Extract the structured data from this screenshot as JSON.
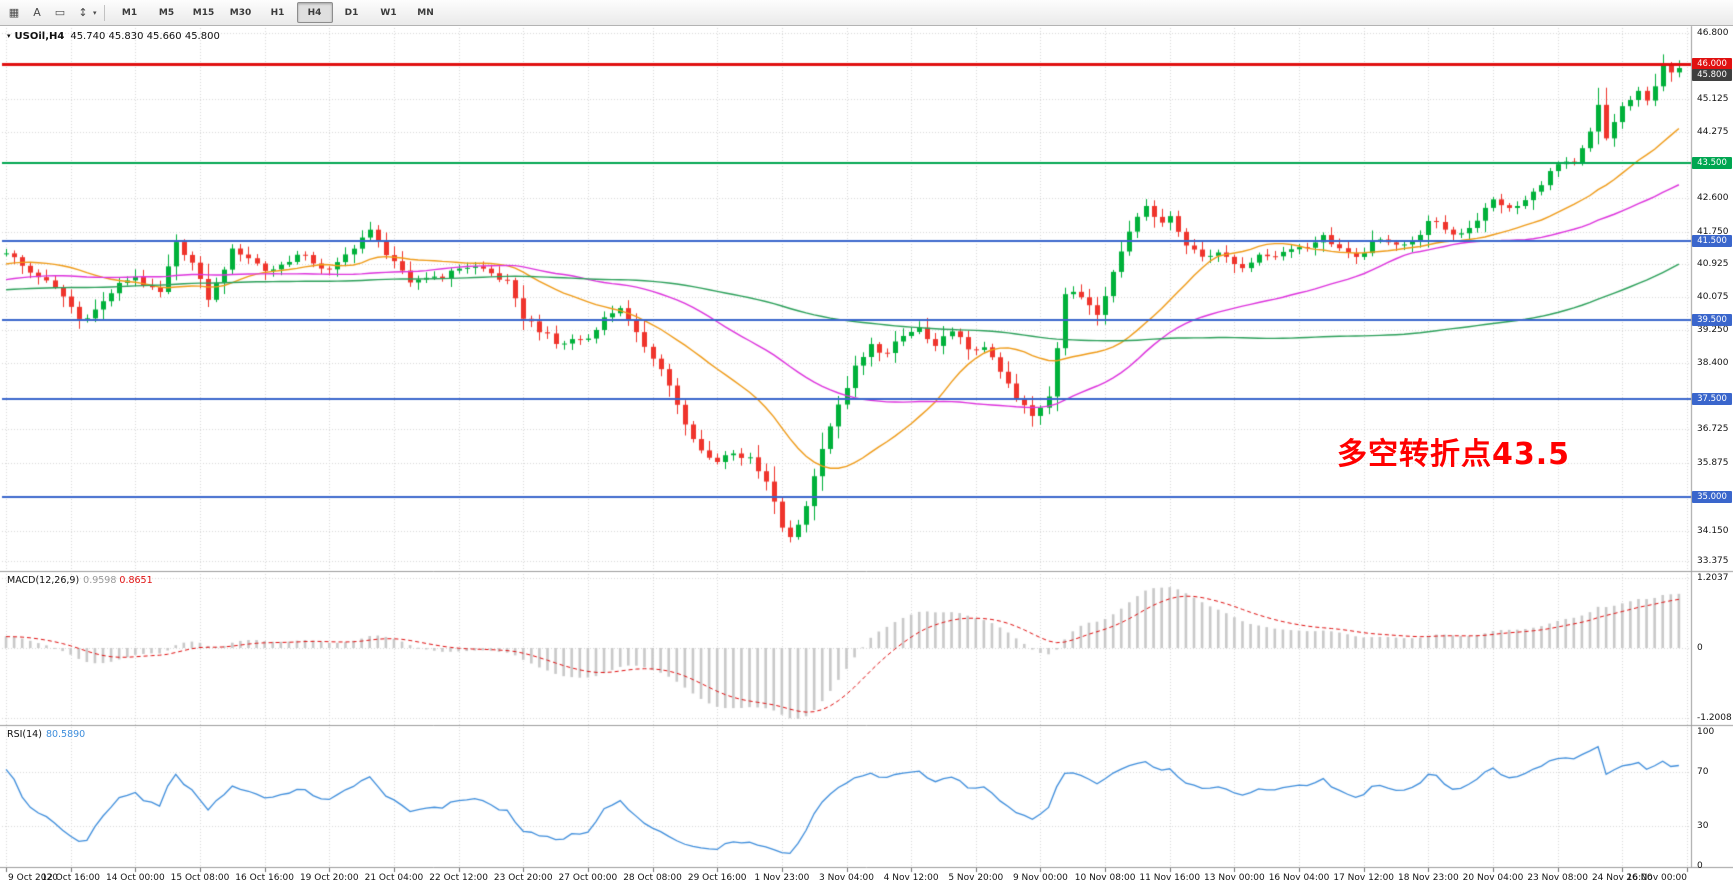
{
  "toolbar": {
    "tools": [
      {
        "name": "chart-window-menu",
        "glyph": "▦"
      },
      {
        "name": "text-label-tool",
        "glyph": "A"
      },
      {
        "name": "shapes-tool",
        "glyph": "▭"
      },
      {
        "name": "cycle-lines-tool",
        "glyph": "↕",
        "caret": true
      }
    ],
    "dropdown_caret": "▾",
    "timeframes": [
      "M1",
      "M5",
      "M15",
      "M30",
      "H1",
      "H4",
      "D1",
      "W1",
      "MN"
    ],
    "active_timeframe": "H4"
  },
  "chart_data": {
    "type": "candlestick",
    "symbol_label": "USOil,H4",
    "collapse_glyph": "▾",
    "ohlc_label": "45.740 45.830 45.660 45.800",
    "annotation": {
      "text": "多空转折点43.5",
      "color": "#ff0000"
    },
    "price_axis": {
      "min": 33.375,
      "max": 46.8,
      "plain_labels": [
        "46.800",
        "45.125",
        "44.275",
        "42.600",
        "41.750",
        "40.925",
        "40.075",
        "39.250",
        "38.400",
        "36.725",
        "35.875",
        "34.150",
        "33.375"
      ],
      "badges": [
        {
          "label": "46.000",
          "color": "#e01010",
          "name": "resistance-46-badge"
        },
        {
          "label": "45.800",
          "color": "#3f3f3f",
          "name": "current-price-badge"
        },
        {
          "label": "43.500",
          "color": "#00a651",
          "name": "pivot-43-5-badge"
        },
        {
          "label": "41.500",
          "color": "#3a66cc",
          "name": "level-41-5-badge"
        },
        {
          "label": "39.500",
          "color": "#3a66cc",
          "name": "level-39-5-badge"
        },
        {
          "label": "37.500",
          "color": "#3a66cc",
          "name": "level-37-5-badge"
        },
        {
          "label": "35.000",
          "color": "#3a66cc",
          "name": "level-35-badge"
        }
      ]
    },
    "hlines": [
      {
        "price": 46.0,
        "color": "#e01010",
        "width": 3
      },
      {
        "price": 43.5,
        "color": "#00a651",
        "width": 2
      },
      {
        "price": 41.5,
        "color": "#3a66cc",
        "width": 2
      },
      {
        "price": 39.5,
        "color": "#3a66cc",
        "width": 2
      },
      {
        "price": 37.5,
        "color": "#3a66cc",
        "width": 2
      },
      {
        "price": 35.0,
        "color": "#3a66cc",
        "width": 2
      }
    ],
    "x_ticks": [
      "9 Oct 2020",
      "12 Oct 16:00",
      "14 Oct 00:00",
      "15 Oct 08:00",
      "16 Oct 16:00",
      "19 Oct 20:00",
      "21 Oct 04:00",
      "22 Oct 12:00",
      "23 Oct 20:00",
      "27 Oct 00:00",
      "28 Oct 08:00",
      "29 Oct 16:00",
      "1 Nov 23:00",
      "3 Nov 04:00",
      "4 Nov 12:00",
      "5 Nov 20:00",
      "9 Nov 00:00",
      "10 Nov 08:00",
      "11 Nov 16:00",
      "13 Nov 00:00",
      "16 Nov 04:00",
      "17 Nov 12:00",
      "18 Nov 23:00",
      "20 Nov 04:00",
      "23 Nov 08:00",
      "24 Nov 16:00",
      "26 Nov 00:00"
    ],
    "bars": 208,
    "bars_per_tick": 8,
    "prehistory_bars": 120,
    "noise": {
      "wave": 0.1,
      "jitter": 0.14
    },
    "prehistory_anchors": [
      [
        -120,
        40.3
      ],
      [
        -96,
        39.4
      ],
      [
        -72,
        40.9
      ],
      [
        -48,
        39.8
      ],
      [
        -24,
        40.4
      ],
      [
        -8,
        41.0
      ]
    ],
    "close_anchors": [
      [
        0,
        41.15
      ],
      [
        4,
        40.7
      ],
      [
        7,
        40.0
      ],
      [
        9,
        39.55
      ],
      [
        12,
        40.0
      ],
      [
        16,
        40.6
      ],
      [
        19,
        40.25
      ],
      [
        21,
        41.35
      ],
      [
        23,
        40.9
      ],
      [
        25,
        40.15
      ],
      [
        28,
        41.2
      ],
      [
        32,
        40.85
      ],
      [
        36,
        41.05
      ],
      [
        40,
        40.85
      ],
      [
        43,
        41.3
      ],
      [
        45,
        41.7
      ],
      [
        48,
        41.1
      ],
      [
        50,
        40.35
      ],
      [
        53,
        40.6
      ],
      [
        56,
        40.9
      ],
      [
        59,
        40.7
      ],
      [
        62,
        40.55
      ],
      [
        64,
        39.6
      ],
      [
        66,
        39.15
      ],
      [
        68,
        38.9
      ],
      [
        70,
        39.1
      ],
      [
        72,
        39.0
      ],
      [
        74,
        39.45
      ],
      [
        76,
        39.9
      ],
      [
        78,
        39.2
      ],
      [
        80,
        38.5
      ],
      [
        82,
        37.8
      ],
      [
        84,
        36.9
      ],
      [
        86,
        36.2
      ],
      [
        88,
        35.8
      ],
      [
        90,
        36.15
      ],
      [
        92,
        36.05
      ],
      [
        94,
        35.35
      ],
      [
        96,
        34.15
      ],
      [
        97,
        33.9
      ],
      [
        98,
        34.35
      ],
      [
        99,
        34.9
      ],
      [
        100,
        35.6
      ],
      [
        101,
        36.3
      ],
      [
        103,
        37.2
      ],
      [
        105,
        38.3
      ],
      [
        107,
        38.95
      ],
      [
        109,
        38.6
      ],
      [
        111,
        39.0
      ],
      [
        113,
        39.35
      ],
      [
        115,
        38.85
      ],
      [
        117,
        39.2
      ],
      [
        119,
        38.65
      ],
      [
        121,
        38.95
      ],
      [
        123,
        38.2
      ],
      [
        125,
        37.4
      ],
      [
        127,
        37.05
      ],
      [
        129,
        37.7
      ],
      [
        130,
        38.9
      ],
      [
        131,
        40.15
      ],
      [
        133,
        40.0
      ],
      [
        135,
        39.75
      ],
      [
        137,
        40.8
      ],
      [
        139,
        41.7
      ],
      [
        141,
        42.4
      ],
      [
        143,
        42.0
      ],
      [
        144,
        42.3
      ],
      [
        146,
        41.35
      ],
      [
        148,
        41.05
      ],
      [
        150,
        41.3
      ],
      [
        153,
        40.85
      ],
      [
        155,
        41.0
      ],
      [
        157,
        41.2
      ],
      [
        159,
        41.45
      ],
      [
        161,
        41.3
      ],
      [
        163,
        41.55
      ],
      [
        165,
        41.4
      ],
      [
        167,
        41.1
      ],
      [
        169,
        41.35
      ],
      [
        171,
        41.5
      ],
      [
        174,
        41.55
      ],
      [
        176,
        41.9
      ],
      [
        179,
        41.7
      ],
      [
        182,
        42.1
      ],
      [
        184,
        42.45
      ],
      [
        186,
        42.3
      ],
      [
        189,
        42.8
      ],
      [
        192,
        43.35
      ],
      [
        194,
        43.5
      ],
      [
        196,
        44.35
      ],
      [
        197,
        44.95
      ],
      [
        198,
        44.05
      ],
      [
        199,
        44.45
      ],
      [
        200,
        44.85
      ],
      [
        201,
        45.1
      ],
      [
        202,
        45.35
      ],
      [
        203,
        45.15
      ],
      [
        204,
        45.55
      ],
      [
        205,
        46.0
      ],
      [
        206,
        45.65
      ],
      [
        207,
        45.8
      ]
    ],
    "ma_lines": [
      {
        "period": 20,
        "color": "#ef9b18"
      },
      {
        "period": 44,
        "color": "#dd33dd"
      },
      {
        "period": 110,
        "color": "#2ca05a"
      }
    ],
    "indicators": {
      "macd": {
        "name": "MACD(12,26,9)",
        "fast": 12,
        "slow": 26,
        "signal": 9,
        "value_main": "0.9598",
        "value_signal": "0.8651",
        "scale_labels": [
          "1.2037",
          "0",
          "-1.2008"
        ]
      },
      "rsi": {
        "name": "RSI(14)",
        "period": 14,
        "value": "80.5890",
        "scale_labels": [
          "100",
          "70",
          "30",
          "0"
        ],
        "levels": [
          70,
          30
        ]
      }
    },
    "style": {
      "up": "#00b13a",
      "down": "#ef342c",
      "grid": "#d8d8d8",
      "macd_hist": "#c9c9c9",
      "macd_signal": "#e01010",
      "rsi": "#3f8edc",
      "axis_text": "#141414"
    }
  }
}
